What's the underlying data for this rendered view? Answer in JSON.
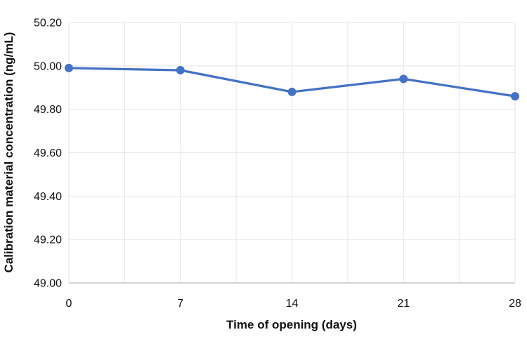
{
  "chart_data": {
    "type": "line",
    "title": "",
    "xlabel": "Time of opening (days)",
    "ylabel": "Calibration material concentration (ng/mL)",
    "x": [
      0,
      7,
      14,
      21,
      28
    ],
    "series": [
      {
        "name": "Calibration material concentration (ng/mL)",
        "values": [
          49.99,
          49.98,
          49.88,
          49.94,
          49.86
        ]
      }
    ],
    "xlim": [
      0,
      28
    ],
    "ylim": [
      49.0,
      50.2
    ],
    "x_ticks": [
      0,
      7,
      14,
      21,
      28
    ],
    "x_tick_labels": [
      "0",
      "7",
      "14",
      "21",
      "28"
    ],
    "x_grid_step": 3.5,
    "y_ticks": [
      49.0,
      49.2,
      49.4,
      49.6,
      49.8,
      50.0,
      50.2
    ],
    "y_tick_labels": [
      "49.00",
      "49.20",
      "49.40",
      "49.60",
      "49.80",
      "50.00",
      "50.20"
    ],
    "grid": true,
    "legend_position": "none",
    "marker": "circle",
    "marker_radius": 6,
    "line_width": 3.25,
    "colors": {
      "line": "#4472C4",
      "marker": "#4472C4",
      "grid": "#e5e5e5",
      "axis_line": "#c9c9c9",
      "text": "#111111",
      "background": "#ffffff"
    }
  }
}
